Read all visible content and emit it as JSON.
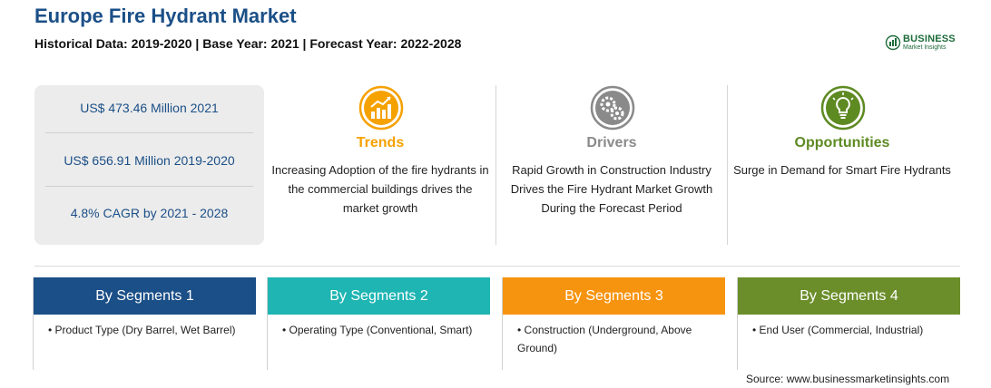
{
  "header": {
    "title": "Europe Fire Hydrant Market",
    "subtitle": "Historical Data: 2019-2020 | Base Year: 2021 | Forecast Year: 2022-2028"
  },
  "logo": {
    "name": "BUSINESS",
    "tagline": "Market Insights",
    "color": "#1c6b3a"
  },
  "stats": [
    "US$ 473.46 Million 2021",
    "US$ 656.91 Million 2019-2020",
    "4.8% CAGR by 2021 - 2028"
  ],
  "columns": [
    {
      "title": "Trends",
      "icon": "trend-chart-icon",
      "color": "#f5a100",
      "text": "Increasing Adoption of the fire hydrants in the commercial buildings drives the market growth"
    },
    {
      "title": "Drivers",
      "icon": "gears-icon",
      "color": "#8a8a8a",
      "text": "Rapid Growth in Construction Industry Drives the Fire Hydrant Market Growth During the Forecast Period"
    },
    {
      "title": "Opportunities",
      "icon": "lightbulb-icon",
      "color": "#5e8a22",
      "text": "Surge in Demand for Smart Fire Hydrants"
    }
  ],
  "segments": [
    {
      "title": "By Segments 1",
      "color": "#1b4f87",
      "item": "• Product Type (Dry Barrel, Wet Barrel)"
    },
    {
      "title": "By Segments 2",
      "color": "#1fb5b3",
      "item": "• Operating Type (Conventional, Smart)"
    },
    {
      "title": "By Segments 3",
      "color": "#f7940f",
      "item": "• Construction (Underground, Above Ground)"
    },
    {
      "title": "By Segments 4",
      "color": "#6b8e2b",
      "item": "• End User (Commercial, Industrial)"
    }
  ],
  "source": "Source: www.businessmarketinsights.com"
}
